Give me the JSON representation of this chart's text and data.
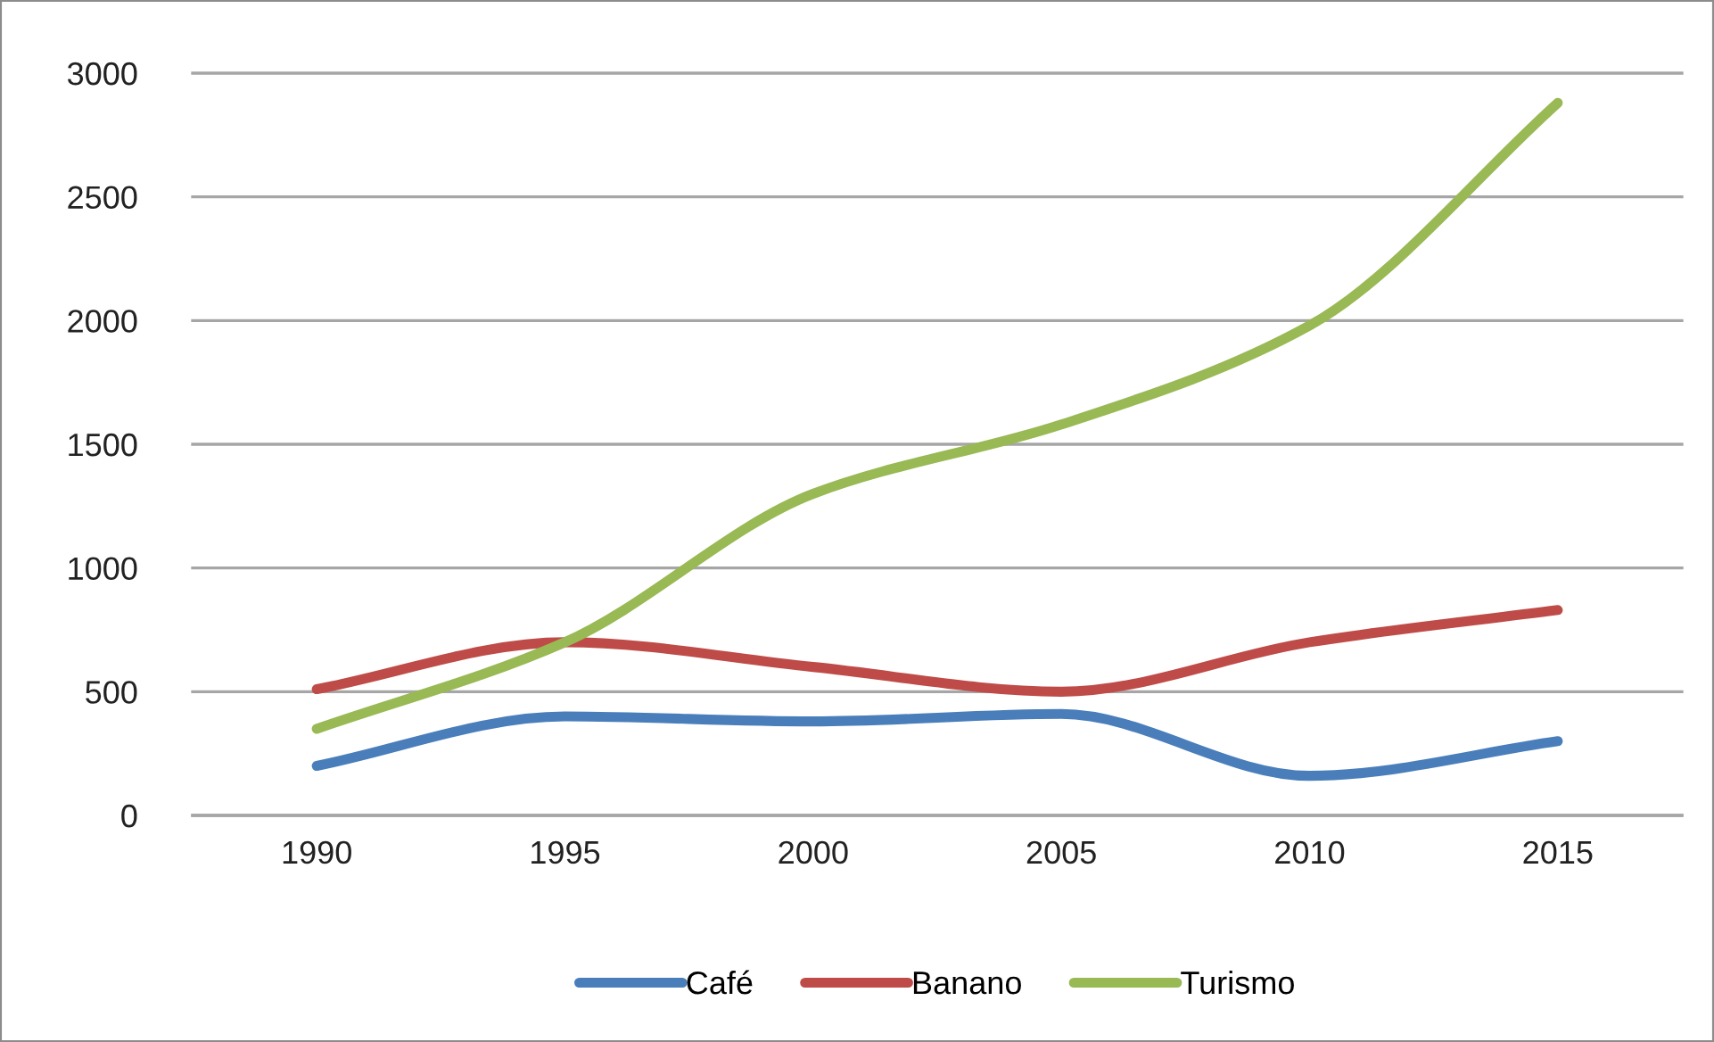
{
  "chart_data": {
    "type": "line",
    "categories": [
      "1990",
      "1995",
      "2000",
      "2005",
      "2010",
      "2015"
    ],
    "series": [
      {
        "name": "Café",
        "color": "#4a7ebb",
        "values": [
          200,
          400,
          380,
          410,
          160,
          300
        ]
      },
      {
        "name": "Banano",
        "color": "#be4b48",
        "values": [
          510,
          700,
          600,
          500,
          700,
          830
        ]
      },
      {
        "name": "Turismo",
        "color": "#98b954",
        "values": [
          350,
          700,
          1300,
          1580,
          1980,
          2880
        ]
      }
    ],
    "ylim": [
      0,
      3000
    ],
    "yticks": [
      0,
      500,
      1000,
      1500,
      2000,
      2500,
      3000
    ],
    "grid": "y",
    "legend": "bottom",
    "line_style": "solid"
  }
}
